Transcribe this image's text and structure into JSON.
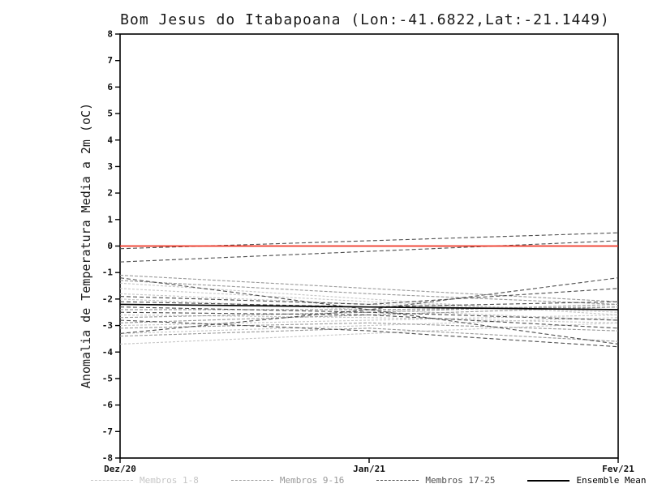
{
  "chart_data": {
    "type": "line",
    "title": "Bom Jesus do Itabapoana (Lon:-41.6822,Lat:-21.1449)",
    "ylabel": "Anomalia de Temperatura Media a 2m (oC)",
    "xlabel": "",
    "x_categories": [
      "Dez/20",
      "Jan/21",
      "Fev/21"
    ],
    "ylim": [
      -8,
      8
    ],
    "ytick_step": 1,
    "grid": false,
    "legend_position": "bottom",
    "zero_line": {
      "y": 0,
      "color": "#ee3524"
    },
    "groups": [
      {
        "name": "Membros 1-8",
        "color": "#c6c6c6",
        "dash": "3 2",
        "series": [
          [
            -1.4,
            -2.0,
            -2.6
          ],
          [
            -1.6,
            -2.1,
            -2.5
          ],
          [
            -1.8,
            -2.2,
            -2.4
          ],
          [
            -2.0,
            -2.4,
            -2.8
          ],
          [
            -2.6,
            -2.7,
            -2.9
          ],
          [
            -3.0,
            -2.8,
            -2.6
          ],
          [
            -3.3,
            -3.0,
            -2.7
          ],
          [
            -3.7,
            -3.3,
            -2.9
          ]
        ]
      },
      {
        "name": "Membros 9-16",
        "color": "#999999",
        "dash": "4 2",
        "series": [
          [
            -1.1,
            -1.6,
            -2.1
          ],
          [
            -1.3,
            -1.8,
            -2.2
          ],
          [
            -2.2,
            -2.3,
            -2.4
          ],
          [
            -2.4,
            -2.4,
            -2.3
          ],
          [
            -2.7,
            -2.5,
            -2.2
          ],
          [
            -2.9,
            -2.6,
            -2.3
          ],
          [
            -3.1,
            -2.9,
            -3.2
          ],
          [
            -3.4,
            -3.1,
            -3.6
          ]
        ]
      },
      {
        "name": "Membros 17-25",
        "color": "#4d4d4d",
        "dash": "5 3",
        "series": [
          [
            -0.1,
            0.2,
            0.5
          ],
          [
            -0.6,
            -0.2,
            0.2
          ],
          [
            -1.2,
            -2.4,
            -3.7
          ],
          [
            -3.3,
            -2.4,
            -1.2
          ],
          [
            -1.9,
            -2.2,
            -1.6
          ],
          [
            -2.1,
            -2.3,
            -2.1
          ],
          [
            -2.3,
            -2.5,
            -2.8
          ],
          [
            -2.5,
            -2.6,
            -3.1
          ],
          [
            -2.8,
            -3.2,
            -3.8
          ]
        ]
      }
    ],
    "mean": {
      "name": "Ensemble Mean",
      "color": "#000000",
      "values": [
        -2.2,
        -2.3,
        -2.4
      ]
    },
    "legend": [
      {
        "label": "Membros 1-8",
        "color": "#c6c6c6",
        "dash": true
      },
      {
        "label": "Membros 9-16",
        "color": "#999999",
        "dash": true
      },
      {
        "label": "Membros 17-25",
        "color": "#4d4d4d",
        "dash": true
      },
      {
        "label": "Ensemble Mean",
        "color": "#000000",
        "dash": false
      }
    ]
  }
}
